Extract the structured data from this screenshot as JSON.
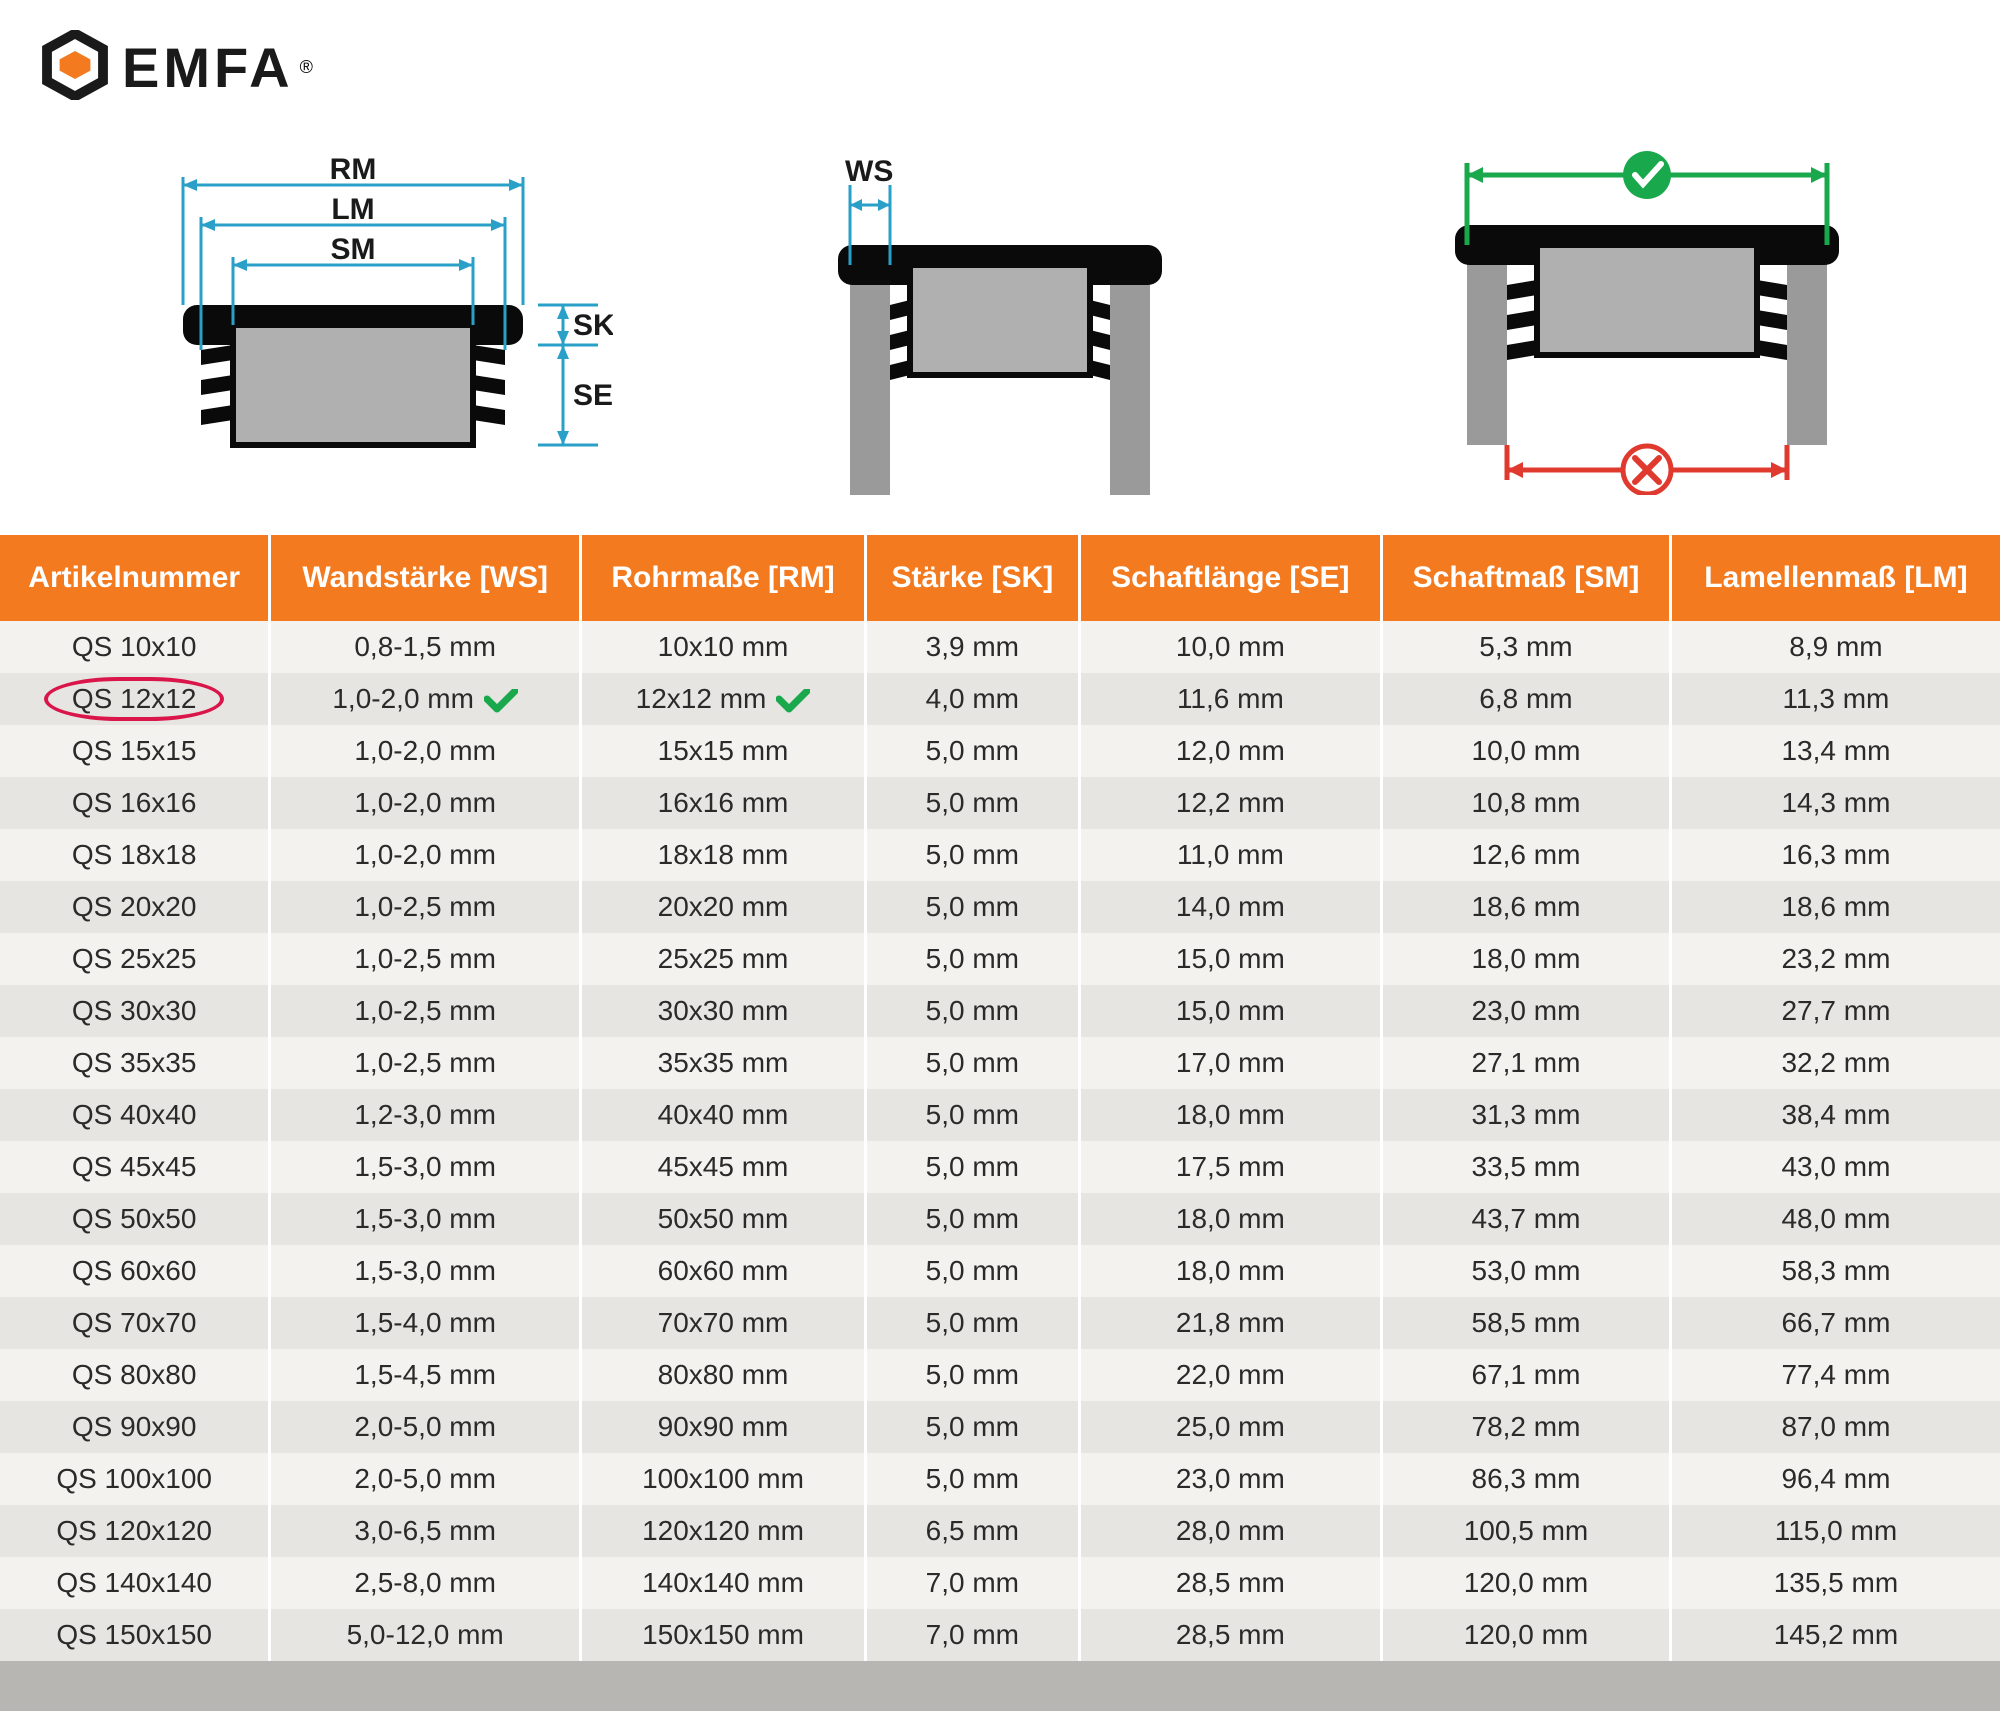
{
  "brand": {
    "name": "EMFA",
    "registered": "®"
  },
  "diagram_labels": {
    "rm": "RM",
    "lm": "LM",
    "sm": "SM",
    "sk": "SK",
    "se": "SE",
    "ws": "WS"
  },
  "colors": {
    "header_bg": "#f37a1f",
    "header_fg": "#ffffff",
    "row_odd": "#f4f2ee",
    "row_even": "#e7e5e1",
    "highlight_ring": "#d9154a",
    "check_green": "#1aa84c",
    "wrong_red": "#e03a2f",
    "dim_blue": "#2aa0c8",
    "cap_black": "#0a0a0a",
    "cap_grey": "#b0b0b0",
    "tube_grey": "#9a9a9a",
    "footer": "#b8b6b2",
    "logo_orange": "#f37a1f"
  },
  "table": {
    "columns": [
      "Artikelnummer",
      "Wandstärke [WS]",
      "Rohrmaße [RM]",
      "Stärke [SK]",
      "Schaftlänge [SE]",
      "Schaftmaß [SM]",
      "Lamellenmaß [LM]"
    ],
    "highlight_row_index": 1,
    "rows": [
      [
        "QS 10x10",
        "0,8-1,5 mm",
        "10x10 mm",
        "3,9 mm",
        "10,0 mm",
        "5,3 mm",
        "8,9 mm"
      ],
      [
        "QS 12x12",
        "1,0-2,0 mm",
        "12x12 mm",
        "4,0 mm",
        "11,6 mm",
        "6,8 mm",
        "11,3 mm"
      ],
      [
        "QS 15x15",
        "1,0-2,0 mm",
        "15x15 mm",
        "5,0 mm",
        "12,0 mm",
        "10,0 mm",
        "13,4 mm"
      ],
      [
        "QS 16x16",
        "1,0-2,0 mm",
        "16x16 mm",
        "5,0 mm",
        "12,2 mm",
        "10,8 mm",
        "14,3 mm"
      ],
      [
        "QS 18x18",
        "1,0-2,0 mm",
        "18x18 mm",
        "5,0 mm",
        "11,0 mm",
        "12,6 mm",
        "16,3 mm"
      ],
      [
        "QS 20x20",
        "1,0-2,5 mm",
        "20x20 mm",
        "5,0 mm",
        "14,0 mm",
        "18,6 mm",
        "18,6 mm"
      ],
      [
        "QS 25x25",
        "1,0-2,5 mm",
        "25x25 mm",
        "5,0 mm",
        "15,0 mm",
        "18,0 mm",
        "23,2 mm"
      ],
      [
        "QS 30x30",
        "1,0-2,5 mm",
        "30x30 mm",
        "5,0 mm",
        "15,0 mm",
        "23,0 mm",
        "27,7 mm"
      ],
      [
        "QS 35x35",
        "1,0-2,5 mm",
        "35x35 mm",
        "5,0 mm",
        "17,0 mm",
        "27,1 mm",
        "32,2 mm"
      ],
      [
        "QS 40x40",
        "1,2-3,0 mm",
        "40x40 mm",
        "5,0 mm",
        "18,0 mm",
        "31,3 mm",
        "38,4 mm"
      ],
      [
        "QS 45x45",
        "1,5-3,0 mm",
        "45x45 mm",
        "5,0 mm",
        "17,5 mm",
        "33,5 mm",
        "43,0 mm"
      ],
      [
        "QS 50x50",
        "1,5-3,0 mm",
        "50x50 mm",
        "5,0 mm",
        "18,0 mm",
        "43,7 mm",
        "48,0 mm"
      ],
      [
        "QS 60x60",
        "1,5-3,0 mm",
        "60x60 mm",
        "5,0 mm",
        "18,0 mm",
        "53,0 mm",
        "58,3 mm"
      ],
      [
        "QS 70x70",
        "1,5-4,0 mm",
        "70x70 mm",
        "5,0 mm",
        "21,8 mm",
        "58,5 mm",
        "66,7 mm"
      ],
      [
        "QS 80x80",
        "1,5-4,5 mm",
        "80x80 mm",
        "5,0 mm",
        "22,0 mm",
        "67,1 mm",
        "77,4 mm"
      ],
      [
        "QS 90x90",
        "2,0-5,0 mm",
        "90x90 mm",
        "5,0 mm",
        "25,0 mm",
        "78,2 mm",
        "87,0 mm"
      ],
      [
        "QS 100x100",
        "2,0-5,0 mm",
        "100x100 mm",
        "5,0 mm",
        "23,0 mm",
        "86,3 mm",
        "96,4 mm"
      ],
      [
        "QS 120x120",
        "3,0-6,5 mm",
        "120x120 mm",
        "6,5 mm",
        "28,0 mm",
        "100,5 mm",
        "115,0 mm"
      ],
      [
        "QS 140x140",
        "2,5-8,0 mm",
        "140x140 mm",
        "7,0 mm",
        "28,5 mm",
        "120,0 mm",
        "135,5 mm"
      ],
      [
        "QS 150x150",
        "5,0-12,0 mm",
        "150x150 mm",
        "7,0 mm",
        "28,5 mm",
        "120,0 mm",
        "145,2 mm"
      ]
    ]
  }
}
